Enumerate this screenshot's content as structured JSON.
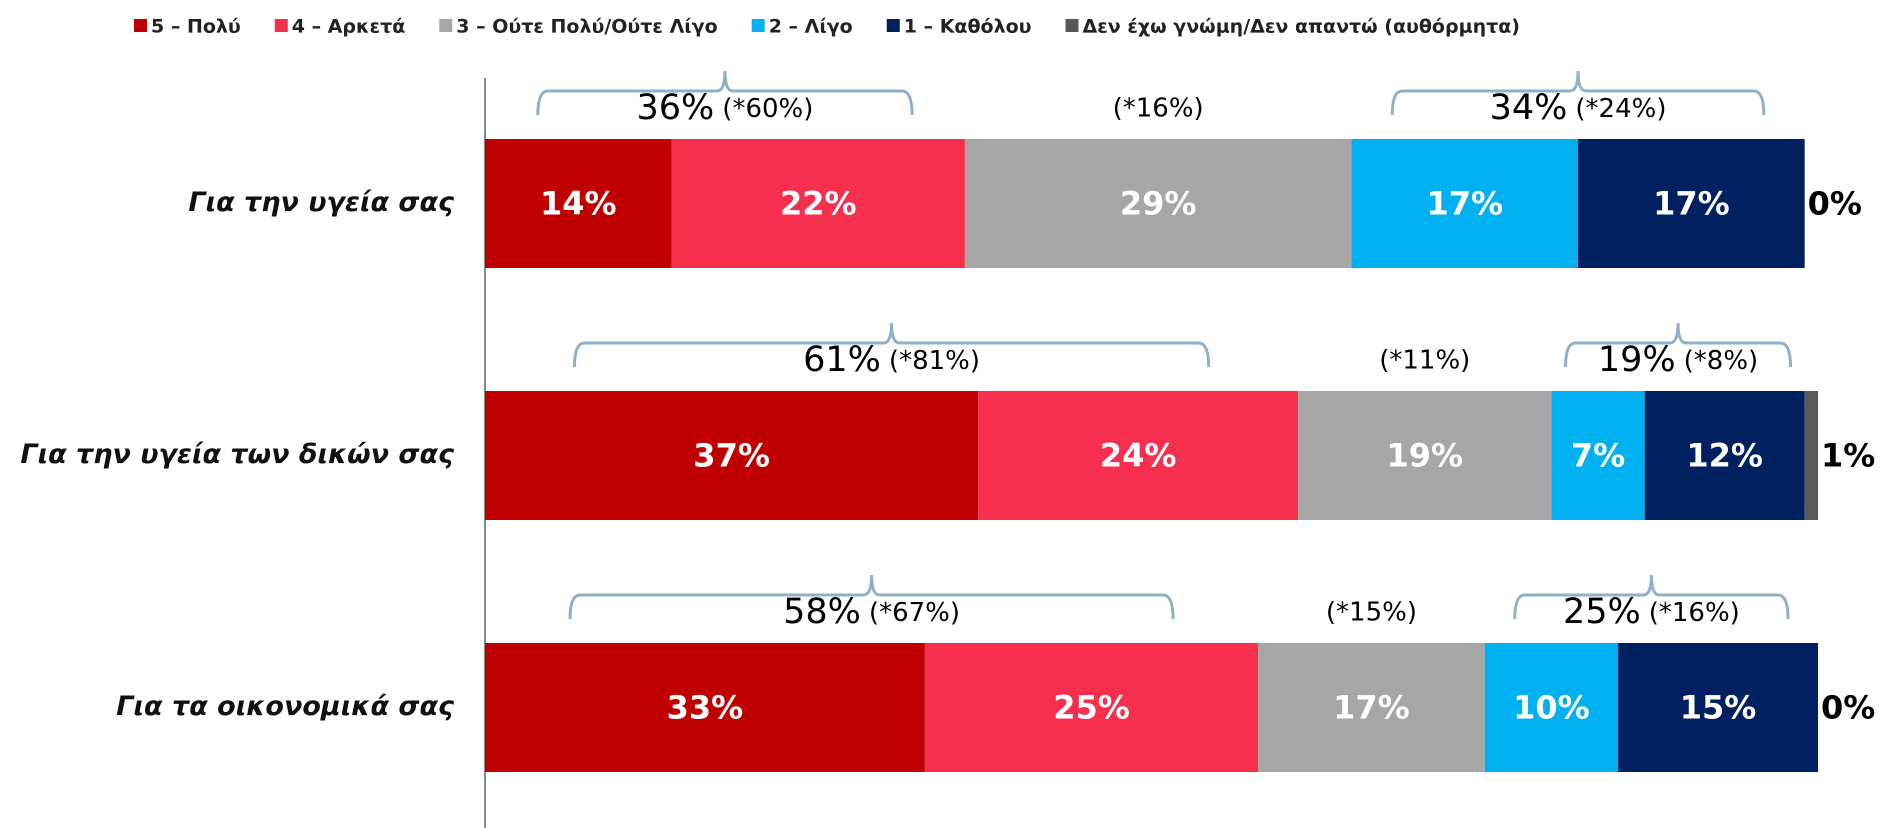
{
  "chart_data": {
    "type": "stacked_bar_horizontal",
    "categories": [
      "Για την υγεία σας",
      "Για την υγεία των δικών σας",
      "Για τα οικονομικά σας"
    ],
    "xlim": [
      0,
      100
    ],
    "legend": "top",
    "series": [
      {
        "name": "5 – Πολύ",
        "color": "#c00000",
        "values": [
          14,
          37,
          33
        ],
        "value_labels": [
          "14%",
          "37%",
          "33%"
        ]
      },
      {
        "name": "4 – Αρκετά",
        "color": "#f72f4f",
        "values": [
          22,
          24,
          25
        ],
        "value_labels": [
          "22%",
          "24%",
          "25%"
        ]
      },
      {
        "name": "3 – Ούτε Πολύ/Ούτε Λίγο",
        "color": "#a6a6a6",
        "values": [
          29,
          19,
          17
        ],
        "value_labels": [
          "29%",
          "19%",
          "17%"
        ]
      },
      {
        "name": "2 – Λίγο",
        "color": "#00b0f0",
        "values": [
          17,
          7,
          10
        ],
        "value_labels": [
          "17%",
          "7%",
          "10%"
        ]
      },
      {
        "name": "1 – Καθόλου",
        "color": "#002060",
        "values": [
          17,
          12,
          15
        ],
        "value_labels": [
          "17%",
          "12%",
          "15%"
        ]
      },
      {
        "name": "Δεν έχω γνώμη/Δεν απαντώ (αυθόρμητα)",
        "color": "#595959",
        "values": [
          0,
          1,
          0
        ],
        "value_labels": [
          "0%",
          "1%",
          "0%"
        ]
      }
    ],
    "annotations": [
      {
        "top_total": "36%",
        "top_net": "(*60%)",
        "middle": "(*16%)",
        "bottom_total": "34%",
        "bottom_net": "(*24%)"
      },
      {
        "top_total": "61%",
        "top_net": "(*81%)",
        "middle": "(*11%)",
        "bottom_total": "19%",
        "bottom_net": "(*8%)"
      },
      {
        "top_total": "58%",
        "top_net": "(*67%)",
        "middle": "(*15%)",
        "bottom_total": "25%",
        "bottom_net": "(*16%)"
      }
    ]
  }
}
